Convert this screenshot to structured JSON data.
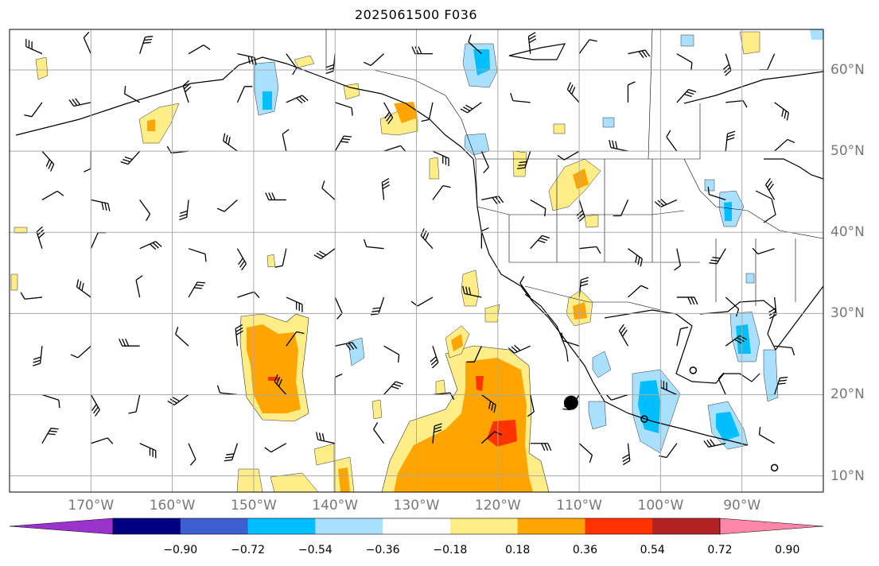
{
  "title": "2025061500 F036",
  "map": {
    "lon_range": [
      -180,
      -80
    ],
    "lat_range": [
      8,
      65
    ],
    "lon_ticks": [
      {
        "value": -170,
        "label": "170°W"
      },
      {
        "value": -160,
        "label": "160°W"
      },
      {
        "value": -150,
        "label": "150°W"
      },
      {
        "value": -140,
        "label": "140°W"
      },
      {
        "value": -130,
        "label": "130°W"
      },
      {
        "value": -120,
        "label": "120°W"
      },
      {
        "value": -110,
        "label": "110°W"
      },
      {
        "value": -100,
        "label": "100°W"
      },
      {
        "value": -90,
        "label": "90°W"
      }
    ],
    "lat_ticks": [
      {
        "value": 10,
        "label": "10°N"
      },
      {
        "value": 20,
        "label": "20°N"
      },
      {
        "value": 30,
        "label": "30°N"
      },
      {
        "value": 40,
        "label": "40°N"
      },
      {
        "value": 50,
        "label": "50°N"
      },
      {
        "value": 60,
        "label": "60°N"
      }
    ],
    "grid": true,
    "marker_big_dot": {
      "lon": -111,
      "lat": 19
    },
    "marker_circles": [
      {
        "lon": -96,
        "lat": 23
      },
      {
        "lon": -102,
        "lat": 17
      },
      {
        "lon": -86,
        "lat": 11
      }
    ]
  },
  "colorbar": {
    "ticks": [
      "−0.90",
      "−0.72",
      "−0.54",
      "−0.36",
      "−0.18",
      "0.18",
      "0.36",
      "0.54",
      "0.72",
      "0.90"
    ],
    "colors": [
      "#9933cc",
      "#000080",
      "#3d5fcf",
      "#00bfff",
      "#aae0ff",
      "#ffffff",
      "#ffee88",
      "#ffa500",
      "#ff3300",
      "#b22222",
      "#ff88aa"
    ],
    "extend": "both"
  },
  "colors": {
    "pos_low": "#ffee88",
    "pos_mid": "#ffa500",
    "pos_high": "#ff3300",
    "neg_low": "#aae0ff",
    "neg_mid": "#00bfff",
    "grid": "#aaaaaa",
    "coast": "#000000"
  }
}
